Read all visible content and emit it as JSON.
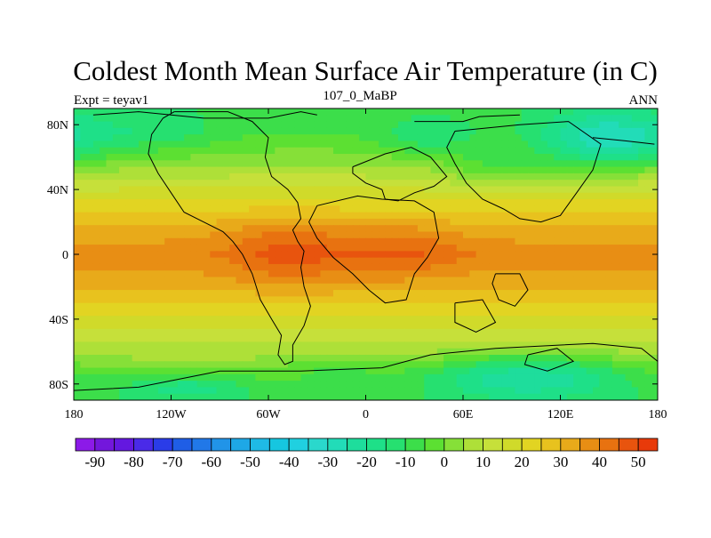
{
  "chart_data": {
    "type": "heatmap",
    "title": "Coldest Month Mean Surface Air Temperature (in C)",
    "left_string": "Expt = teyav1",
    "center_string": "107_0_MaBP",
    "right_string": "ANN",
    "xlim": [
      -180,
      180
    ],
    "ylim": [
      -90,
      90
    ],
    "x_ticks": [
      {
        "value": -180,
        "label": "180"
      },
      {
        "value": -120,
        "label": "120W"
      },
      {
        "value": -60,
        "label": "60W"
      },
      {
        "value": 0,
        "label": "0"
      },
      {
        "value": 60,
        "label": "60E"
      },
      {
        "value": 120,
        "label": "120E"
      },
      {
        "value": 180,
        "label": "180"
      }
    ],
    "y_ticks": [
      {
        "value": 80,
        "label": "80N"
      },
      {
        "value": 40,
        "label": "40N"
      },
      {
        "value": 0,
        "label": "0"
      },
      {
        "value": -40,
        "label": "40S"
      },
      {
        "value": -80,
        "label": "80S"
      }
    ],
    "colorbar": {
      "levels": [
        -95,
        -90,
        -85,
        -80,
        -75,
        -70,
        -65,
        -60,
        -55,
        -50,
        -45,
        -40,
        -35,
        -30,
        -25,
        -20,
        -15,
        -10,
        -5,
        0,
        5,
        10,
        15,
        20,
        25,
        30,
        35,
        40,
        45,
        50,
        55
      ],
      "colors": [
        "#8c1ae8",
        "#7317dc",
        "#6418e0",
        "#4a2ae8",
        "#2a3ce8",
        "#1f5ee6",
        "#2178e8",
        "#2194e8",
        "#1ea8e6",
        "#1fbae6",
        "#16c6e0",
        "#20d0e0",
        "#2ad8cc",
        "#22dcb8",
        "#1edd9c",
        "#1ee088",
        "#26e070",
        "#3cde4a",
        "#5ce032",
        "#86e038",
        "#aee038",
        "#c6e03a",
        "#d0da2a",
        "#e2d422",
        "#e8c21e",
        "#e8aa1a",
        "#e88e14",
        "#e87210",
        "#e8540e",
        "#e83a0a"
      ],
      "labels": [
        "-90",
        "-80",
        "-70",
        "-60",
        "-50",
        "-40",
        "-30",
        "-20",
        "-10",
        "0",
        "10",
        "20",
        "30",
        "40",
        "50"
      ]
    },
    "zonal_means": [
      {
        "lat": 90,
        "value": -8
      },
      {
        "lat": 75,
        "value": -5
      },
      {
        "lat": 60,
        "value": 2
      },
      {
        "lat": 45,
        "value": 12
      },
      {
        "lat": 30,
        "value": 22
      },
      {
        "lat": 15,
        "value": 32
      },
      {
        "lat": 0,
        "value": 38
      },
      {
        "lat": -15,
        "value": 33
      },
      {
        "lat": -30,
        "value": 25
      },
      {
        "lat": -45,
        "value": 15
      },
      {
        "lat": -60,
        "value": 8
      },
      {
        "lat": -75,
        "value": -2
      },
      {
        "lat": -90,
        "value": -8
      }
    ],
    "anomalies": [
      {
        "lon": -45,
        "lat": 2,
        "rlon": 40,
        "rlat": 22,
        "amp": 10
      },
      {
        "lon": 25,
        "lat": 2,
        "rlon": 35,
        "rlat": 16,
        "amp": 8
      },
      {
        "lon": 150,
        "lat": 70,
        "rlon": 45,
        "rlat": 18,
        "amp": -26
      },
      {
        "lon": 40,
        "lat": 72,
        "rlon": 30,
        "rlat": 12,
        "amp": -10
      },
      {
        "lon": 80,
        "lat": 52,
        "rlon": 30,
        "rlat": 12,
        "amp": -10
      },
      {
        "lon": -130,
        "lat": 75,
        "rlon": 40,
        "rlat": 14,
        "amp": -8
      },
      {
        "lon": 100,
        "lat": -75,
        "rlon": 60,
        "rlat": 14,
        "amp": -22
      },
      {
        "lon": -110,
        "lat": -82,
        "rlon": 40,
        "rlat": 8,
        "amp": -12
      },
      {
        "lon": -20,
        "lat": -70,
        "rlon": 30,
        "rlat": 8,
        "amp": -6
      }
    ],
    "coastlines": [
      [
        [
          -118,
          88
        ],
        [
          -85,
          88
        ],
        [
          -70,
          82
        ],
        [
          -60,
          72
        ],
        [
          -62,
          60
        ],
        [
          -58,
          48
        ],
        [
          -48,
          40
        ],
        [
          -42,
          32
        ],
        [
          -40,
          22
        ],
        [
          -45,
          15
        ],
        [
          -42,
          8
        ],
        [
          -38,
          2
        ],
        [
          -40,
          -8
        ],
        [
          -38,
          -20
        ],
        [
          -34,
          -32
        ],
        [
          -38,
          -44
        ],
        [
          -45,
          -56
        ],
        [
          -45,
          -66
        ],
        [
          -50,
          -68
        ],
        [
          -54,
          -62
        ],
        [
          -52,
          -50
        ],
        [
          -58,
          -40
        ],
        [
          -65,
          -28
        ],
        [
          -70,
          -12
        ],
        [
          -76,
          0
        ],
        [
          -82,
          8
        ],
        [
          -88,
          14
        ],
        [
          -100,
          20
        ],
        [
          -112,
          26
        ],
        [
          -120,
          38
        ],
        [
          -128,
          50
        ],
        [
          -134,
          62
        ],
        [
          -132,
          74
        ],
        [
          -125,
          84
        ],
        [
          -118,
          88
        ]
      ],
      [
        [
          -8,
          54
        ],
        [
          12,
          62
        ],
        [
          28,
          66
        ],
        [
          40,
          60
        ],
        [
          50,
          48
        ],
        [
          42,
          42
        ],
        [
          30,
          38
        ],
        [
          20,
          33
        ],
        [
          12,
          34
        ],
        [
          10,
          40
        ],
        [
          0,
          44
        ],
        [
          -8,
          50
        ],
        [
          -8,
          54
        ]
      ],
      [
        [
          -30,
          30
        ],
        [
          -5,
          36
        ],
        [
          10,
          34
        ],
        [
          30,
          33
        ],
        [
          42,
          26
        ],
        [
          45,
          10
        ],
        [
          38,
          -2
        ],
        [
          30,
          -12
        ],
        [
          25,
          -28
        ],
        [
          12,
          -30
        ],
        [
          2,
          -22
        ],
        [
          -8,
          -12
        ],
        [
          -20,
          -2
        ],
        [
          -30,
          10
        ],
        [
          -35,
          20
        ],
        [
          -30,
          30
        ]
      ],
      [
        [
          55,
          76
        ],
        [
          95,
          80
        ],
        [
          125,
          82
        ],
        [
          145,
          68
        ],
        [
          140,
          52
        ],
        [
          130,
          38
        ],
        [
          120,
          24
        ],
        [
          108,
          20
        ],
        [
          95,
          22
        ],
        [
          85,
          28
        ],
        [
          72,
          34
        ],
        [
          62,
          44
        ],
        [
          55,
          56
        ],
        [
          50,
          66
        ],
        [
          55,
          76
        ]
      ],
      [
        [
          80,
          -12
        ],
        [
          95,
          -12
        ],
        [
          100,
          -22
        ],
        [
          92,
          -32
        ],
        [
          82,
          -28
        ],
        [
          78,
          -18
        ],
        [
          80,
          -12
        ]
      ],
      [
        [
          55,
          -30
        ],
        [
          72,
          -28
        ],
        [
          80,
          -42
        ],
        [
          68,
          -48
        ],
        [
          55,
          -42
        ],
        [
          55,
          -30
        ]
      ],
      [
        [
          100,
          -62
        ],
        [
          118,
          -58
        ],
        [
          128,
          -66
        ],
        [
          112,
          -72
        ],
        [
          98,
          -68
        ],
        [
          100,
          -62
        ]
      ],
      [
        [
          -90,
          -72
        ],
        [
          -40,
          -72
        ],
        [
          10,
          -70
        ],
        [
          40,
          -62
        ],
        [
          80,
          -58
        ],
        [
          140,
          -55
        ],
        [
          170,
          -58
        ],
        [
          180,
          -66
        ],
        [
          180,
          -90
        ],
        [
          -180,
          -90
        ],
        [
          -180,
          -84
        ],
        [
          -140,
          -82
        ],
        [
          -110,
          -76
        ],
        [
          -90,
          -72
        ]
      ],
      [
        [
          -168,
          86
        ],
        [
          -140,
          88
        ],
        [
          -120,
          86
        ],
        [
          -100,
          84
        ],
        [
          -60,
          84
        ],
        [
          -40,
          88
        ],
        [
          -30,
          86
        ]
      ],
      [
        [
          30,
          82
        ],
        [
          60,
          82
        ],
        [
          70,
          85
        ],
        [
          95,
          86
        ]
      ],
      [
        [
          140,
          72
        ],
        [
          160,
          70
        ],
        [
          178,
          68
        ]
      ]
    ]
  }
}
